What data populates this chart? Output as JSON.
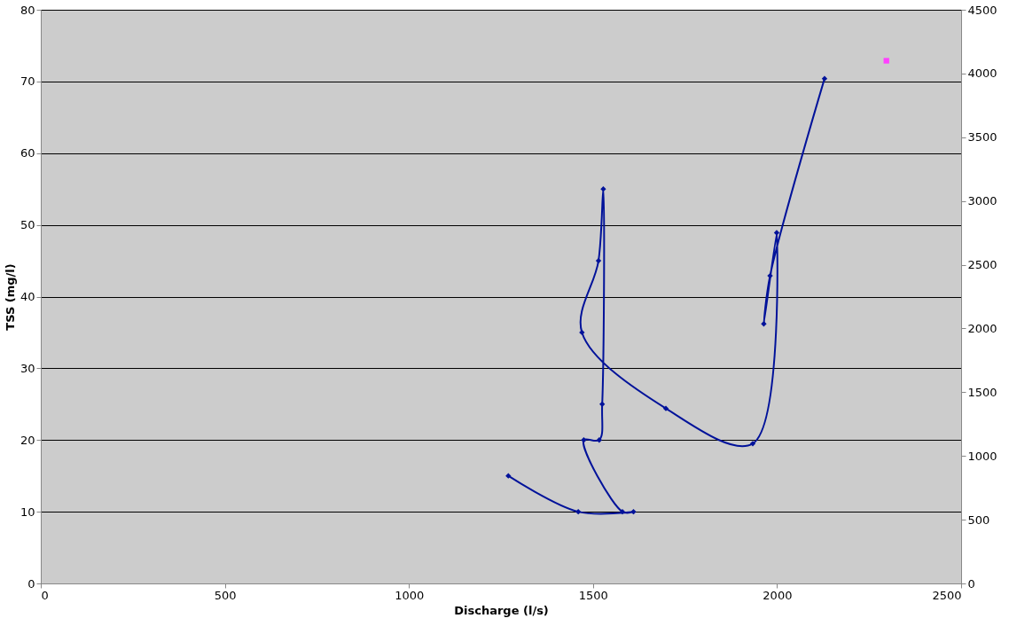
{
  "chart_data": {
    "type": "line",
    "xlabel": "Discharge (l/s)",
    "ylabel": "TSS (mg/l)",
    "xlim": [
      0,
      2500
    ],
    "xticks": [
      0,
      500,
      1000,
      1500,
      2000,
      2500
    ],
    "ylim": [
      0,
      80
    ],
    "yticks": [
      0,
      10,
      20,
      30,
      40,
      50,
      60,
      70,
      80
    ],
    "y2lim": [
      0,
      4500
    ],
    "y2ticks": [
      0,
      500,
      1000,
      1500,
      2000,
      2500,
      3000,
      3500,
      4000,
      4500
    ],
    "grid": "y",
    "line_style": "solid",
    "series": [
      {
        "color": "#00129a",
        "marker": "diamond",
        "x": [
          1270,
          1460,
          1610,
          1580,
          1475,
          1517,
          1525,
          1528,
          1515,
          1470,
          1698,
          1934,
          1999,
          1964,
          1981,
          2129
        ],
        "values": [
          15,
          10,
          10,
          10,
          20,
          20,
          25,
          55,
          45,
          35,
          24.4,
          19.5,
          48.9,
          36.2,
          42.9,
          70.4
        ]
      },
      {
        "type": "scatter",
        "color": "#ff40ff",
        "marker": "square",
        "axis": "y2",
        "x": [
          2297
        ],
        "values": [
          4100
        ]
      }
    ]
  }
}
